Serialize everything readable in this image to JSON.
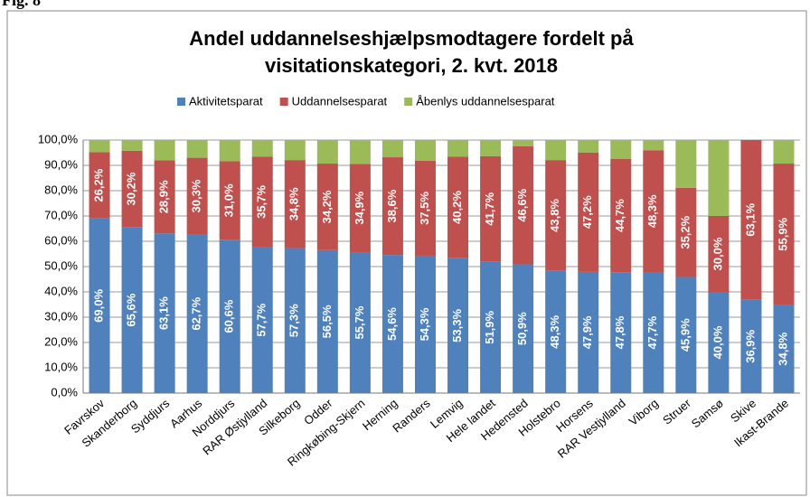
{
  "fig_label": "Fig. 8",
  "chart_data": {
    "type": "stacked-bar",
    "title": [
      "Andel uddannelseshjælpsmodtagere fordelt på",
      "visitationskategori, 2. kvt. 2018"
    ],
    "categories": [
      "Favrskov",
      "Skanderborg",
      "Syddjurs",
      "Aarhus",
      "Norddjurs",
      "RAR Østjylland",
      "Silkeborg",
      "Odder",
      "Ringkøbing-Skjern",
      "Herning",
      "Randers",
      "Lemvig",
      "Hele landet",
      "Hedensted",
      "Holstebro",
      "Horsens",
      "RAR Vestjylland",
      "Viborg",
      "Struer",
      "Samsø",
      "Skive",
      "Ikast-Brande"
    ],
    "series": [
      {
        "name": "Aktivitetsparat",
        "color": "#4f81bd",
        "values": [
          69.0,
          65.6,
          63.1,
          62.7,
          60.6,
          57.7,
          57.3,
          56.5,
          55.7,
          54.6,
          54.3,
          53.3,
          51.9,
          50.9,
          48.3,
          47.9,
          47.8,
          47.7,
          45.9,
          40.0,
          36.9,
          34.8
        ],
        "value_labels": [
          "69,0%",
          "65,6%",
          "63,1%",
          "62,7%",
          "60,6%",
          "57,7%",
          "57,3%",
          "56,5%",
          "55,7%",
          "54,6%",
          "54,3%",
          "53,3%",
          "51,9%",
          "50,9%",
          "48,3%",
          "47,9%",
          "47,8%",
          "47,7%",
          "45,9%",
          "40,0%",
          "36,9%",
          "34,8%"
        ]
      },
      {
        "name": "Uddannelsesparat",
        "color": "#c0504d",
        "values": [
          26.2,
          30.2,
          28.9,
          30.3,
          31.0,
          35.7,
          34.8,
          34.2,
          34.9,
          38.6,
          37.5,
          40.2,
          41.7,
          46.6,
          43.8,
          47.2,
          44.7,
          48.3,
          35.2,
          30.0,
          63.1,
          55.9
        ],
        "value_labels": [
          "26,2%",
          "30,2%",
          "28,9%",
          "30,3%",
          "31,0%",
          "35,7%",
          "34,8%",
          "34,2%",
          "34,9%",
          "38,6%",
          "37,5%",
          "40,2%",
          "41,7%",
          "46,6%",
          "43,8%",
          "47,2%",
          "44,7%",
          "48,3%",
          "35,2%",
          "30,0%",
          "63,1%",
          "55,9%"
        ]
      },
      {
        "name": "Åbenlys uddannelsesparat",
        "color": "#9bbb59",
        "values": [
          4.8,
          4.2,
          8.0,
          7.0,
          8.4,
          6.6,
          7.9,
          9.3,
          9.4,
          6.8,
          8.2,
          6.5,
          6.4,
          2.5,
          7.9,
          4.9,
          7.5,
          4.0,
          18.9,
          30.0,
          0.0,
          9.3
        ]
      }
    ],
    "ylim": [
      0,
      100
    ],
    "yticks": [
      {
        "value": 0,
        "label": "0,0%"
      },
      {
        "value": 10,
        "label": "10,0%"
      },
      {
        "value": 20,
        "label": "20,0%"
      },
      {
        "value": 30,
        "label": "30,0%"
      },
      {
        "value": 40,
        "label": "40,0%"
      },
      {
        "value": 50,
        "label": "50,0%"
      },
      {
        "value": 60,
        "label": "60,0%"
      },
      {
        "value": 70,
        "label": "70,0%"
      },
      {
        "value": 80,
        "label": "80,0%"
      },
      {
        "value": 90,
        "label": "90,0%"
      },
      {
        "value": 100,
        "label": "100,0%"
      }
    ],
    "grid": true,
    "legend": "top"
  }
}
